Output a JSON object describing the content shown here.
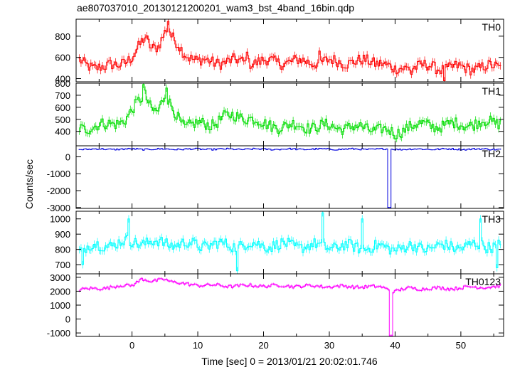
{
  "chart_data": {
    "type": "line",
    "title": "ae807037010_20130121200201_wam3_bst_4band_16bin.qdp",
    "xlabel": "Time [sec] 0 = 2013/01/21 20:02:01.746",
    "ylabel": "Counts/sec",
    "xlim": [
      -8.5,
      56.5
    ],
    "x_ticks": [
      0,
      10,
      20,
      30,
      40,
      50
    ],
    "sample_step": 0.25,
    "grid": false,
    "legend": "none",
    "panels": [
      {
        "name": "TH0",
        "color": "#ff0000",
        "ylim": [
          370,
          960
        ],
        "y_ticks": [
          400,
          600,
          800
        ],
        "anchors": [
          [
            -8,
            560
          ],
          [
            -6,
            520
          ],
          [
            -4,
            500
          ],
          [
            -2,
            540
          ],
          [
            0,
            600
          ],
          [
            1,
            680
          ],
          [
            2,
            780
          ],
          [
            3,
            700
          ],
          [
            4,
            720
          ],
          [
            5,
            830
          ],
          [
            5.5,
            880
          ],
          [
            6,
            780
          ],
          [
            8,
            650
          ],
          [
            10,
            560
          ],
          [
            14,
            560
          ],
          [
            20,
            560
          ],
          [
            30,
            560
          ],
          [
            38,
            560
          ],
          [
            40,
            470
          ],
          [
            42,
            520
          ],
          [
            48,
            500
          ],
          [
            50,
            500
          ],
          [
            56,
            510
          ]
        ],
        "spikes": [
          [
            5.6,
            940
          ],
          [
            17.5,
            650
          ],
          [
            28.5,
            660
          ],
          [
            42.5,
            440
          ],
          [
            47.5,
            380
          ]
        ]
      },
      {
        "name": "TH1",
        "color": "#00dd00",
        "ylim": [
          280,
          800
        ],
        "y_ticks": [
          400,
          500,
          600,
          700,
          800
        ],
        "anchors": [
          [
            -8,
            430
          ],
          [
            -4,
            450
          ],
          [
            -1,
            500
          ],
          [
            0,
            560
          ],
          [
            1,
            640
          ],
          [
            2,
            710
          ],
          [
            3,
            600
          ],
          [
            4,
            570
          ],
          [
            5,
            680
          ],
          [
            6,
            600
          ],
          [
            8,
            450
          ],
          [
            12,
            460
          ],
          [
            14,
            520
          ],
          [
            18,
            520
          ],
          [
            20,
            450
          ],
          [
            30,
            440
          ],
          [
            38,
            420
          ],
          [
            40,
            370
          ],
          [
            42,
            450
          ],
          [
            48,
            450
          ],
          [
            56,
            480
          ]
        ],
        "spikes": [
          [
            1.8,
            790
          ],
          [
            5.3,
            760
          ],
          [
            40.2,
            340
          ]
        ]
      },
      {
        "name": "TH2",
        "color": "#0000dd",
        "ylim": [
          -3050,
          650
        ],
        "y_ticks": [
          -3000,
          -2000,
          -1000,
          0
        ],
        "anchors": [
          [
            -8,
            450
          ],
          [
            56,
            450
          ]
        ],
        "spikes": [
          [
            39.1,
            -3000
          ],
          [
            39.3,
            -3000
          ]
        ]
      },
      {
        "name": "TH3",
        "color": "#00ffff",
        "ylim": [
          640,
          1050
        ],
        "y_ticks": [
          700,
          800,
          900,
          1000
        ],
        "anchors": [
          [
            -8,
            800
          ],
          [
            -6,
            820
          ],
          [
            0,
            850
          ],
          [
            10,
            830
          ],
          [
            20,
            830
          ],
          [
            30,
            820
          ],
          [
            40,
            810
          ],
          [
            50,
            820
          ],
          [
            56,
            830
          ]
        ],
        "spikes": [
          [
            -7.5,
            700
          ],
          [
            -0.5,
            1000
          ],
          [
            16,
            660
          ],
          [
            29,
            1040
          ],
          [
            35,
            1000
          ],
          [
            53,
            1000
          ],
          [
            55.5,
            680
          ]
        ]
      },
      {
        "name": "TH0123",
        "color": "#ff00ff",
        "ylim": [
          -1250,
          3250
        ],
        "y_ticks": [
          -1000,
          0,
          1000,
          2000,
          3000
        ],
        "anchors": [
          [
            -8,
            2100
          ],
          [
            -4,
            2250
          ],
          [
            0,
            2450
          ],
          [
            1.5,
            2900
          ],
          [
            3,
            2650
          ],
          [
            5,
            2900
          ],
          [
            6,
            2700
          ],
          [
            8,
            2500
          ],
          [
            14,
            2380
          ],
          [
            20,
            2400
          ],
          [
            30,
            2350
          ],
          [
            38,
            2300
          ],
          [
            40,
            2000
          ],
          [
            42,
            2200
          ],
          [
            48,
            2200
          ],
          [
            50,
            2250
          ],
          [
            56,
            2350
          ]
        ],
        "spikes": [
          [
            39.2,
            -1200
          ],
          [
            39.4,
            -1200
          ]
        ]
      }
    ]
  }
}
